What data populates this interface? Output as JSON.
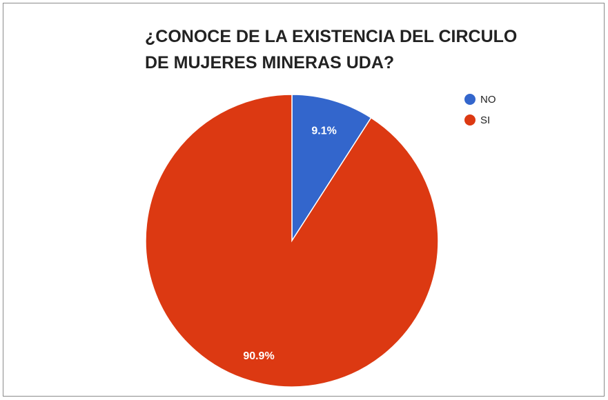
{
  "chart_data": {
    "type": "pie",
    "title_lines": [
      "¿CONOCE DE LA EXISTENCIA DEL CIRCULO",
      "DE MUJERES MINERAS UDA?"
    ],
    "categories": [
      "NO",
      "SI"
    ],
    "values": [
      9.1,
      90.9
    ],
    "labels": [
      "9.1%",
      "90.9%"
    ],
    "colors": [
      "#3366cc",
      "#dc3912"
    ],
    "legend_position": "top-right"
  }
}
